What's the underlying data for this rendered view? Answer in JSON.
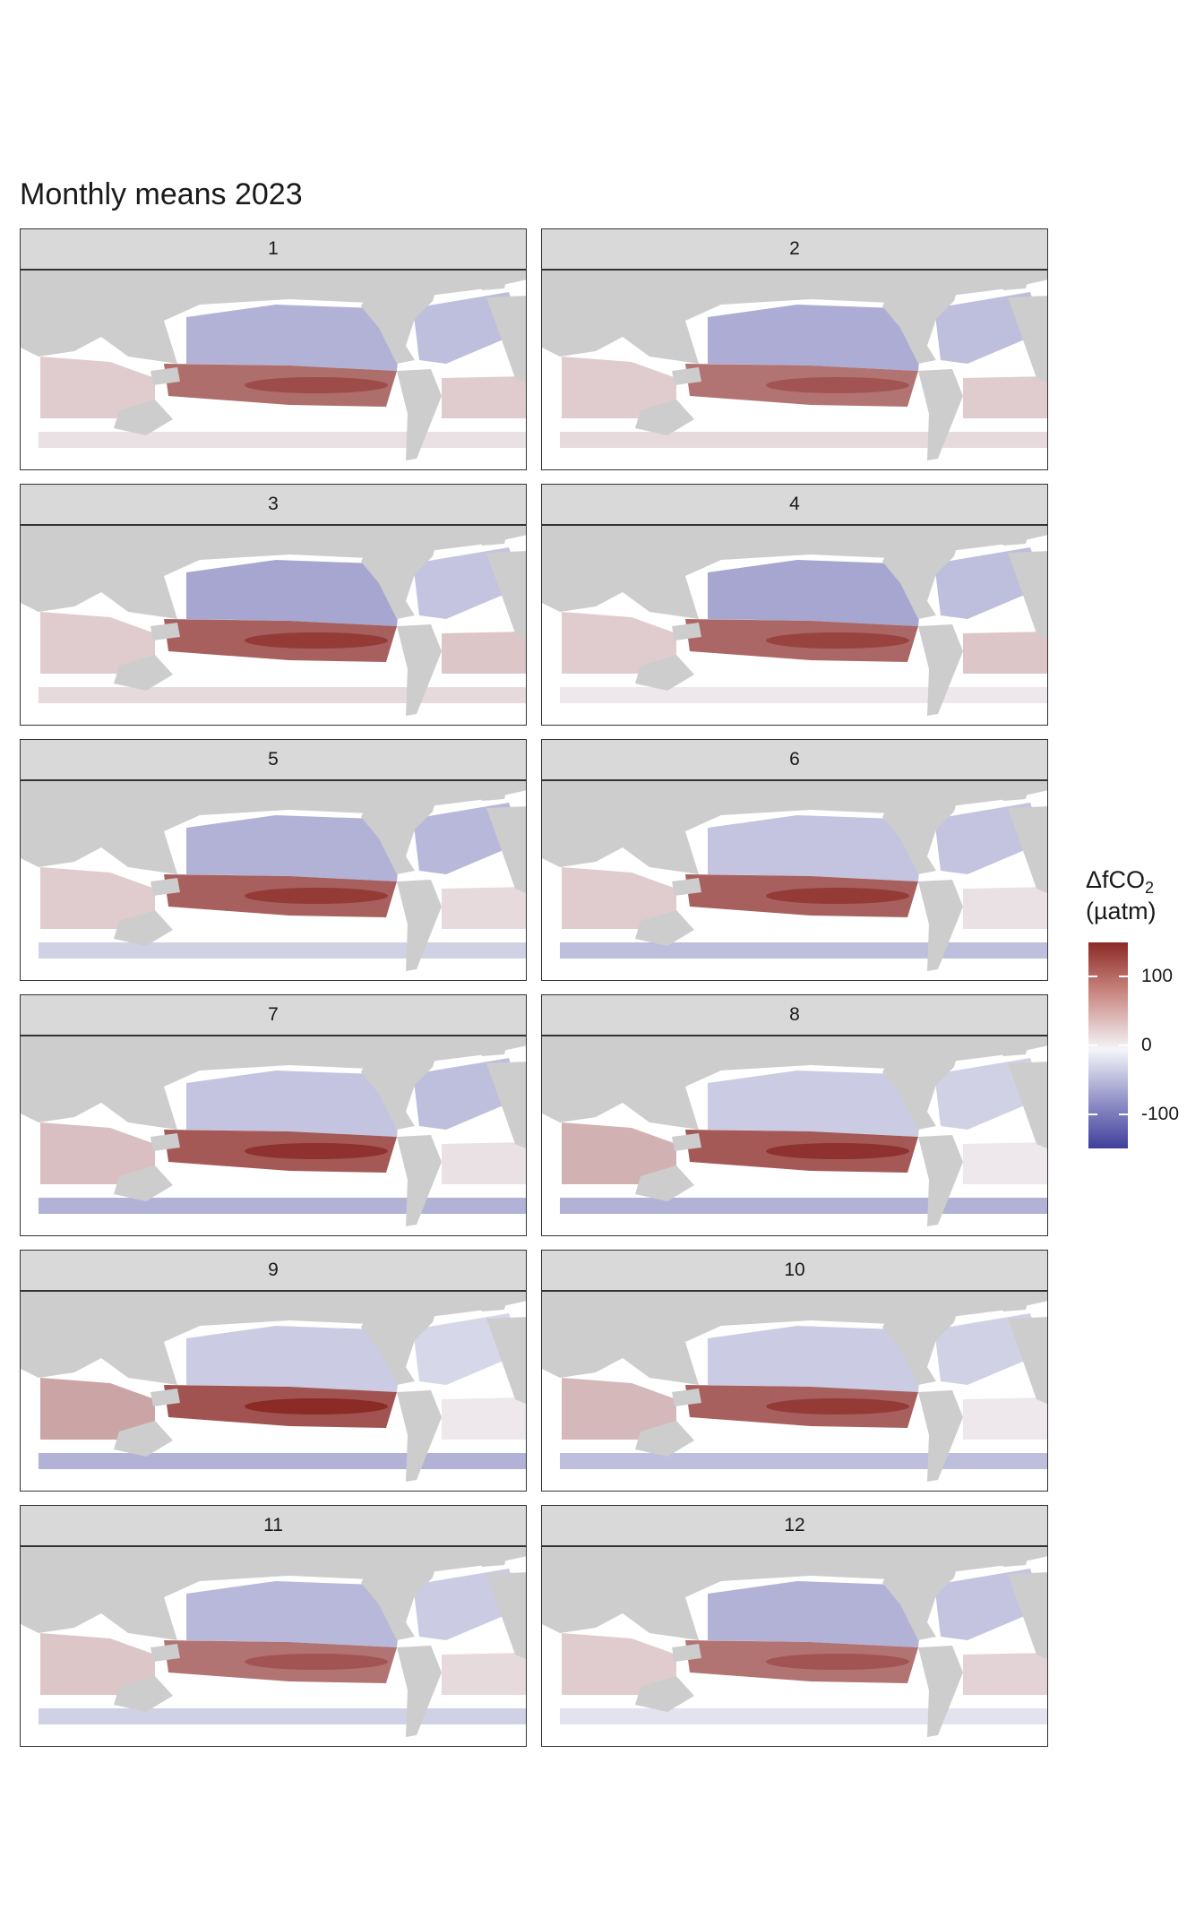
{
  "chart_data": {
    "type": "heatmap",
    "title": "Monthly means 2023",
    "facet_variable": "month",
    "panels": [
      {
        "label": "1",
        "values": {
          "eq_pacific": 100,
          "n_pacific": -55,
          "n_atlantic": -45,
          "s_ocean": 15,
          "indian": 30,
          "s_atlantic": 30
        }
      },
      {
        "label": "2",
        "values": {
          "eq_pacific": 95,
          "n_pacific": -60,
          "n_atlantic": -45,
          "s_ocean": 20,
          "indian": 30,
          "s_atlantic": 30
        }
      },
      {
        "label": "3",
        "values": {
          "eq_pacific": 110,
          "n_pacific": -65,
          "n_atlantic": -40,
          "s_ocean": 20,
          "indian": 30,
          "s_atlantic": 35
        }
      },
      {
        "label": "4",
        "values": {
          "eq_pacific": 105,
          "n_pacific": -65,
          "n_atlantic": -45,
          "s_ocean": 10,
          "indian": 30,
          "s_atlantic": 35
        }
      },
      {
        "label": "5",
        "values": {
          "eq_pacific": 110,
          "n_pacific": -55,
          "n_atlantic": -50,
          "s_ocean": -30,
          "indian": 30,
          "s_atlantic": 20
        }
      },
      {
        "label": "6",
        "values": {
          "eq_pacific": 110,
          "n_pacific": -40,
          "n_atlantic": -40,
          "s_ocean": -45,
          "indian": 30,
          "s_atlantic": 15
        }
      },
      {
        "label": "7",
        "values": {
          "eq_pacific": 115,
          "n_pacific": -40,
          "n_atlantic": -45,
          "s_ocean": -55,
          "indian": 40,
          "s_atlantic": 15
        }
      },
      {
        "label": "8",
        "values": {
          "eq_pacific": 115,
          "n_pacific": -35,
          "n_atlantic": -30,
          "s_ocean": -55,
          "indian": 50,
          "s_atlantic": 10
        }
      },
      {
        "label": "9",
        "values": {
          "eq_pacific": 120,
          "n_pacific": -35,
          "n_atlantic": -25,
          "s_ocean": -55,
          "indian": 60,
          "s_atlantic": 10
        }
      },
      {
        "label": "10",
        "values": {
          "eq_pacific": 110,
          "n_pacific": -35,
          "n_atlantic": -30,
          "s_ocean": -45,
          "indian": 45,
          "s_atlantic": 10
        }
      },
      {
        "label": "11",
        "values": {
          "eq_pacific": 95,
          "n_pacific": -50,
          "n_atlantic": -35,
          "s_ocean": -30,
          "indian": 35,
          "s_atlantic": 20
        }
      },
      {
        "label": "12",
        "values": {
          "eq_pacific": 95,
          "n_pacific": -55,
          "n_atlantic": -40,
          "s_ocean": -15,
          "indian": 30,
          "s_atlantic": 25
        }
      }
    ],
    "legend": {
      "title": "ΔfCO",
      "title_subscript": "2",
      "units": "(µatm)",
      "range": [
        -150,
        150
      ],
      "breaks": [
        100,
        0,
        -100
      ],
      "break_labels": [
        "100",
        "0",
        "-100"
      ],
      "colors": {
        "high": "#8b2a26",
        "mid": "#f5f5f9",
        "low": "#3f3f9c"
      },
      "placement": "right"
    },
    "colors": {
      "land": "#cdcdcd",
      "strip": "#d9d9d9",
      "missing": "#ffffff"
    }
  }
}
